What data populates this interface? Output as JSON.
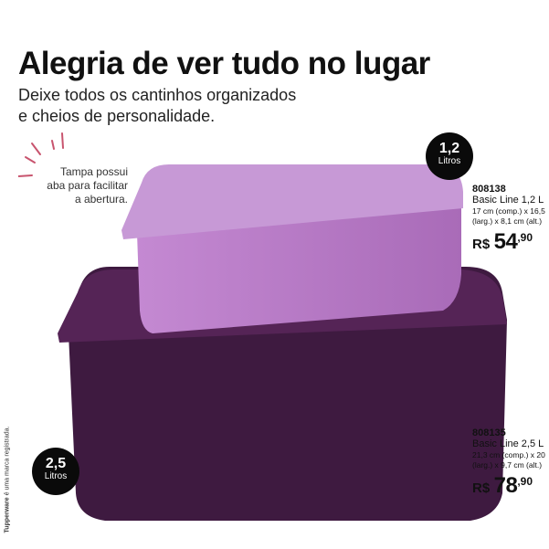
{
  "headline": "Alegria de ver tudo no lugar",
  "subtitle": [
    "Deixe todos os cantinhos organizados",
    "e cheios de personalidade."
  ],
  "note": [
    "Tampa possui",
    "aba para facilitar",
    "a abertura."
  ],
  "products": [
    {
      "badge_value": "1,2",
      "badge_unit": "Litros",
      "code": "808138",
      "name": "Basic Line 1,2 L",
      "dims": [
        "17 cm (comp.) x 16,5",
        "(larg.) x 8,1 cm (alt.)"
      ],
      "currency": "R$",
      "price_int": "54",
      "price_dec": ",90",
      "color": "#b57ac4"
    },
    {
      "badge_value": "2,5",
      "badge_unit": "Litros",
      "code": "808135",
      "name": "Basic Line 2,5 L",
      "dims": [
        "21,3 cm (comp.) x 20",
        "(larg.) x 9,7 cm (alt.)"
      ],
      "currency": "R$",
      "price_int": "78",
      "price_dec": ",90",
      "color": "#3e1a40"
    }
  ],
  "legal": {
    "brand": "Tupperware",
    "text": " é uma marca registrada."
  },
  "accent": "#c8546e"
}
